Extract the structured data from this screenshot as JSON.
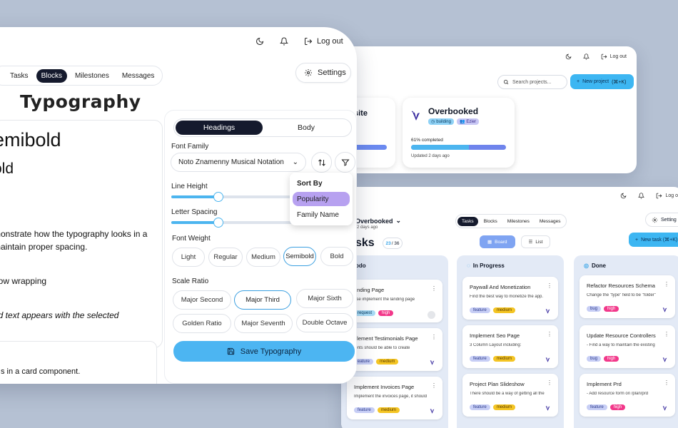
{
  "projects_window": {
    "topbar": {
      "logout_label": "Log out"
    },
    "search": {
      "placeholder": "Search projects..."
    },
    "new_project": {
      "label": "New project",
      "shortcut": "(⌘+K)"
    },
    "card_partial": {
      "title_fragment": "site"
    },
    "card": {
      "title": "Overbooked",
      "badges": [
        "building",
        "Ezier"
      ],
      "progress_label": "61% completed",
      "progress": 0.61,
      "updated": "Updated 2 days ago"
    }
  },
  "board_window": {
    "topbar": {
      "logout_label": "Log o"
    },
    "project": {
      "name": "Overbooked",
      "sub": "2 days ago"
    },
    "title": "sks",
    "count": {
      "current": "23",
      "total": "/ 36"
    },
    "tabs": [
      "Tasks",
      "Blocks",
      "Milestones",
      "Messages"
    ],
    "active_tab": "Tasks",
    "settings_label": "Setting",
    "views": [
      "Board",
      "List"
    ],
    "new_task": "New task (⌘+K)",
    "columns": [
      {
        "title": "odo",
        "cards": [
          {
            "title": "anding Page",
            "desc": "ase implement the landing page",
            "tags": [
              "request",
              "high"
            ]
          },
          {
            "title": "plement Testimonials Page",
            "desc": "ients should be able to create",
            "tags": [
              "eature",
              "medium"
            ]
          },
          {
            "title": "Implement Invoices Page",
            "desc": "Implement the invoices page, it should",
            "tags": [
              "feature",
              "medium"
            ]
          }
        ]
      },
      {
        "title": "In Progress",
        "cards": [
          {
            "title": "Paywall And Monetization",
            "desc": "Find the best way to monetize the app.",
            "tags": [
              "feature",
              "medium"
            ]
          },
          {
            "title": "Implement Seo Page",
            "desc": "3 Column Layout including:",
            "tags": [
              "feature",
              "medium"
            ]
          },
          {
            "title": "Project Plan Slideshow",
            "desc": "There should be a way of getting all the",
            "tags": [
              "feature",
              "medium"
            ]
          }
        ]
      },
      {
        "title": "Done",
        "cards": [
          {
            "title": "Refactor Resources Schema",
            "desc": "Change the \"type\" field to be \"folder\"",
            "tags": [
              "bug",
              "high"
            ]
          },
          {
            "title": "Update Resource Controllers",
            "desc": "- Find a way to maintain the existing",
            "tags": [
              "bug",
              "high"
            ]
          },
          {
            "title": "Implement Prd",
            "desc": "- Add resource form on /plan/prd",
            "tags": [
              "feature",
              "high"
            ]
          }
        ]
      }
    ]
  },
  "typography_window": {
    "topbar": {
      "logout_label": "Log out"
    },
    "tabs": [
      "Tasks",
      "Blocks",
      "Milestones",
      "Messages"
    ],
    "active_tab": "Blocks",
    "settings_label": "Settings",
    "heading": "Typography",
    "preview": {
      "line1": "emibold",
      "line2": "old",
      "para1_l1": "monstrate how the typography looks in a",
      "para1_l2": "maintain proper spacing.",
      "para2": "how wrapping",
      "para3": "ed text appears with the selected",
      "card_text": "s in a card component."
    },
    "segment": {
      "options": [
        "Headings",
        "Body"
      ],
      "active": "Headings"
    },
    "font_family": {
      "label": "Font Family",
      "value": "Noto Znamenny Musical Notation"
    },
    "line_height": {
      "label": "Line Height",
      "value": 0.33
    },
    "letter_spacing": {
      "label": "Letter Spacing",
      "value": 0.33
    },
    "font_weight": {
      "label": "Font Weight",
      "options": [
        "Light",
        "Regular",
        "Medium",
        "Semibold",
        "Bold"
      ],
      "active": "Semibold"
    },
    "scale_ratio": {
      "label": "Scale Ratio",
      "options": [
        "Major Second",
        "Major Third",
        "Major Sixth",
        "Golden Ratio",
        "Major Seventh",
        "Double Octave"
      ],
      "active": "Major Third"
    },
    "sort_popup": {
      "heading": "Sort By",
      "options": [
        "Popularity",
        "Family Name"
      ],
      "selected": "Popularity"
    },
    "save_label": "Save Typography"
  },
  "colors": {
    "accent": "#4cb5f2",
    "dark": "#151a2d",
    "background": "#b5c1d3",
    "selected_option": "#b7a1f0"
  },
  "icons": [
    "moon-icon",
    "bell-icon",
    "logout-icon",
    "gear-icon",
    "search-icon",
    "plus-icon",
    "sort-icon",
    "filter-icon",
    "save-icon",
    "more-icon",
    "board-icon",
    "list-icon",
    "chevron-icon"
  ]
}
